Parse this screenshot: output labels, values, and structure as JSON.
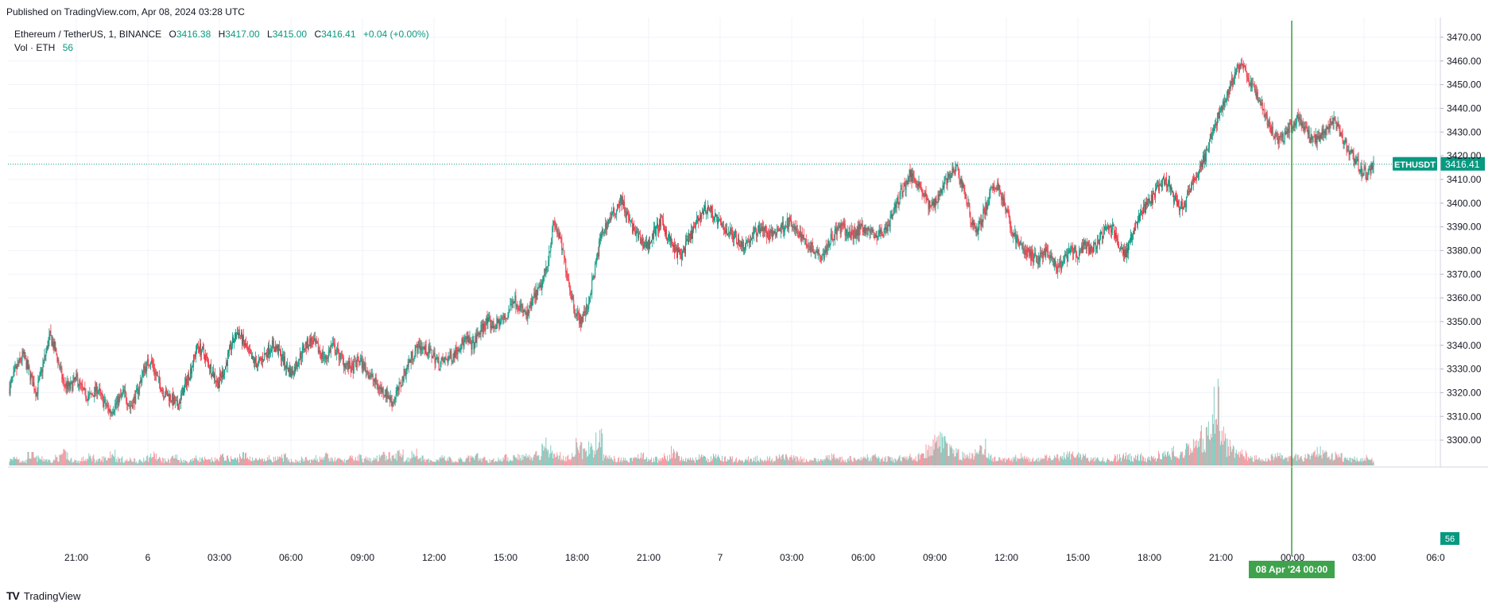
{
  "header": {
    "published": "Published on TradingView.com, Apr 08, 2024 03:28 UTC"
  },
  "legend": {
    "symbol": "Ethereum / TetherUS, 1, BINANCE",
    "open_label": "O",
    "open": "3416.38",
    "high_label": "H",
    "high": "3417.00",
    "low_label": "L",
    "low": "3415.00",
    "close_label": "C",
    "close": "3416.41",
    "change": "+0.04 (+0.00%)",
    "volume_label": "Vol · ETH",
    "volume": "56"
  },
  "footer": {
    "brand": "TradingView",
    "logo": "TV"
  },
  "colors": {
    "up": "#089981",
    "down": "#F23645",
    "crosshair": "#2E9B2E",
    "grid": "#F0F3FA"
  },
  "chart_data": {
    "type": "candlestick",
    "symbol": "ETHUSDT",
    "interval": "1",
    "ylim": [
      3295,
      3475
    ],
    "y_ticks": [
      "3300.00",
      "3310.00",
      "3320.00",
      "3330.00",
      "3340.00",
      "3350.00",
      "3360.00",
      "3370.00",
      "3380.00",
      "3390.00",
      "3400.00",
      "3410.00",
      "3420.00",
      "3430.00",
      "3440.00",
      "3450.00",
      "3460.00",
      "3470.00"
    ],
    "x_ticks": [
      "21:00",
      "6",
      "03:00",
      "06:00",
      "09:00",
      "12:00",
      "15:00",
      "18:00",
      "21:00",
      "7",
      "03:00",
      "06:00",
      "09:00",
      "12:00",
      "15:00",
      "18:00",
      "21:00",
      "00:00",
      "03:00",
      "06:0"
    ],
    "crosshair_label": "08 Apr '24   00:00",
    "last_price": 3416.41,
    "last_price_label": "ETHUSDT",
    "last_price_text": "3416.41",
    "volume_last": "56",
    "series": [
      {
        "name": "price path",
        "values": [
          3322,
          3330,
          3336,
          3328,
          3320,
          3332,
          3344,
          3336,
          3324,
          3322,
          3326,
          3320,
          3318,
          3322,
          3316,
          3312,
          3316,
          3320,
          3314,
          3320,
          3330,
          3334,
          3326,
          3320,
          3318,
          3314,
          3322,
          3330,
          3340,
          3336,
          3330,
          3324,
          3330,
          3340,
          3346,
          3340,
          3334,
          3332,
          3336,
          3340,
          3338,
          3332,
          3328,
          3334,
          3340,
          3342,
          3338,
          3334,
          3340,
          3336,
          3332,
          3330,
          3334,
          3330,
          3326,
          3322,
          3320,
          3316,
          3322,
          3330,
          3336,
          3340,
          3338,
          3336,
          3332,
          3334,
          3336,
          3340,
          3342,
          3340,
          3346,
          3350,
          3348,
          3350,
          3352,
          3360,
          3356,
          3352,
          3360,
          3364,
          3374,
          3392,
          3384,
          3370,
          3356,
          3350,
          3356,
          3370,
          3386,
          3392,
          3396,
          3402,
          3394,
          3388,
          3384,
          3382,
          3388,
          3392,
          3386,
          3380,
          3378,
          3384,
          3390,
          3396,
          3398,
          3394,
          3390,
          3388,
          3386,
          3382,
          3384,
          3388,
          3390,
          3386,
          3388,
          3390,
          3392,
          3388,
          3386,
          3382,
          3380,
          3378,
          3384,
          3388,
          3390,
          3386,
          3388,
          3390,
          3388,
          3386,
          3388,
          3392,
          3400,
          3406,
          3412,
          3410,
          3404,
          3398,
          3402,
          3408,
          3412,
          3414,
          3406,
          3394,
          3388,
          3396,
          3404,
          3408,
          3400,
          3390,
          3384,
          3380,
          3378,
          3376,
          3380,
          3376,
          3372,
          3376,
          3380,
          3378,
          3382,
          3380,
          3384,
          3388,
          3390,
          3384,
          3378,
          3386,
          3394,
          3398,
          3402,
          3406,
          3410,
          3404,
          3398,
          3400,
          3408,
          3414,
          3420,
          3430,
          3438,
          3444,
          3452,
          3458,
          3456,
          3448,
          3444,
          3436,
          3430,
          3426,
          3430,
          3434,
          3436,
          3430,
          3426,
          3428,
          3432,
          3436,
          3430,
          3424,
          3420,
          3414,
          3412,
          3416
        ]
      }
    ],
    "volume_series": [
      {
        "name": "Vol · ETH",
        "values": [
          8,
          12,
          6,
          14,
          10,
          9,
          7,
          11,
          16,
          8,
          6,
          9,
          12,
          7,
          10,
          18,
          9,
          7,
          8,
          6,
          11,
          14,
          9,
          7,
          12,
          8,
          6,
          10,
          9,
          7,
          8,
          12,
          10,
          9,
          14,
          11,
          8,
          7,
          10,
          9,
          12,
          8,
          6,
          9,
          7,
          10,
          13,
          9,
          8,
          7,
          10,
          12,
          9,
          8,
          11,
          14,
          12,
          18,
          9,
          20,
          10,
          7,
          8,
          11,
          9,
          6,
          8,
          10,
          12,
          9,
          7,
          8,
          11,
          9,
          14,
          13,
          12,
          16,
          28,
          22,
          14,
          11,
          12,
          30,
          18,
          24,
          38,
          12,
          10,
          9,
          8,
          11,
          14,
          10,
          9,
          8,
          12,
          20,
          10,
          9,
          8,
          11,
          9,
          12,
          10,
          9,
          8,
          7,
          9,
          10,
          8,
          9,
          12,
          11,
          10,
          9,
          8,
          7,
          9,
          10,
          12,
          9,
          8,
          10,
          9,
          11,
          12,
          10,
          9,
          8,
          10,
          12,
          9,
          14,
          22,
          30,
          40,
          24,
          20,
          15,
          14,
          18,
          26,
          12,
          9,
          8,
          10,
          12,
          14,
          9,
          8,
          11,
          10,
          12,
          14,
          16,
          13,
          12,
          10,
          9,
          8,
          11,
          12,
          14,
          10,
          12,
          9,
          11,
          16,
          18,
          20,
          14,
          22,
          30,
          40,
          52,
          96,
          40,
          26,
          20,
          16,
          12,
          10,
          9,
          12,
          14,
          11,
          10,
          13,
          12,
          15,
          20,
          18,
          14,
          12,
          10,
          9,
          8,
          11,
          9
        ]
      }
    ]
  }
}
